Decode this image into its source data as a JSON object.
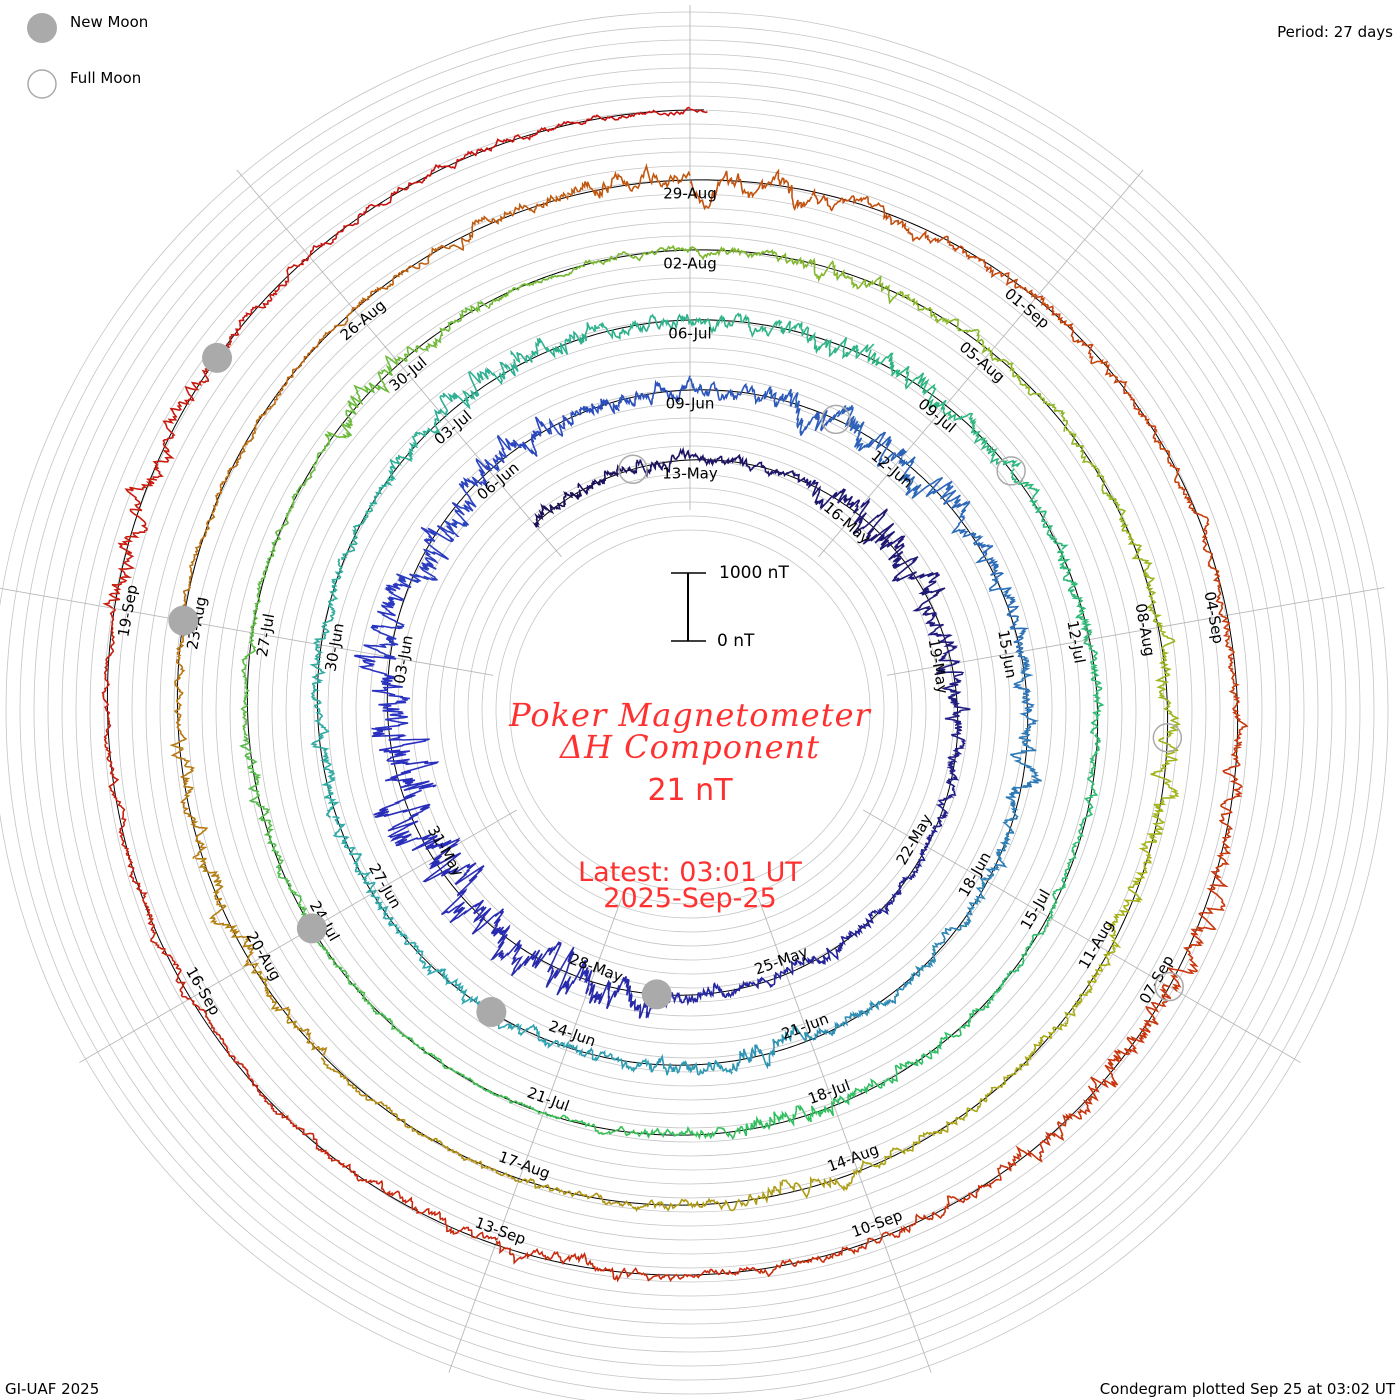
{
  "legend": {
    "new_moon": "New Moon",
    "full_moon": "Full Moon"
  },
  "period_label": "Period: 27 days",
  "footer_left": "GI-UAF 2025",
  "footer_right": "Condegram plotted Sep 25 at 03:02 UT",
  "scale": {
    "top": "1000 nT",
    "bottom": "0 nT"
  },
  "title_line1": "Poker Magnetometer",
  "title_line2": "ΔH Component",
  "current_value": "21 nT",
  "latest_line1": "Latest: 03:01 UT",
  "latest_line2": "2025-Sep-25",
  "colors": {
    "text_accent": "#ff3030",
    "grid": "#b0b0b0",
    "moon": "#aaaaaa",
    "turn_colors": [
      "#1a0f55",
      "#2a30c0",
      "#2fa6b0",
      "#2fc060",
      "#a6b418",
      "#c8400c",
      "#c81010"
    ]
  },
  "chart_data": {
    "type": "line",
    "layout": "spiral condegram",
    "period_days": 27,
    "start_date": "2025-05-10",
    "end_date": "2025-09-25",
    "reference_date": "2025-05-13",
    "scale_nT_per_bar": 1000,
    "date_labels": [
      "13-May",
      "16-May",
      "19-May",
      "22-May",
      "25-May",
      "28-May",
      "31-May",
      "03-Jun",
      "06-Jun",
      "09-Jun",
      "12-Jun",
      "15-Jun",
      "18-Jun",
      "21-Jun",
      "24-Jun",
      "27-Jun",
      "30-Jun",
      "03-Jul",
      "06-Jul",
      "09-Jul",
      "12-Jul",
      "15-Jul",
      "18-Jul",
      "21-Jul",
      "24-Jul",
      "27-Jul",
      "30-Jul",
      "02-Aug",
      "05-Aug",
      "08-Aug",
      "11-Aug",
      "14-Aug",
      "17-Aug",
      "20-Aug",
      "23-Aug",
      "26-Aug",
      "29-Aug",
      "01-Sep",
      "04-Sep",
      "07-Sep",
      "10-Sep",
      "13-Sep",
      "16-Sep",
      "19-Sep"
    ],
    "new_moons": [
      "2025-05-27",
      "2025-06-25",
      "2025-07-24",
      "2025-08-23",
      "2025-09-21"
    ],
    "full_moons": [
      "2025-05-12",
      "2025-06-11",
      "2025-07-10",
      "2025-08-09",
      "2025-09-07"
    ],
    "daily_activity_nT": [
      120,
      90,
      110,
      80,
      60,
      200,
      320,
      260,
      150,
      180,
      120,
      80,
      70,
      90,
      110,
      80,
      150,
      300,
      420,
      350,
      380,
      480,
      520,
      400,
      300,
      350,
      260,
      220,
      180,
      150,
      130,
      280,
      320,
      260,
      180,
      150,
      140,
      200,
      120,
      100,
      90,
      110,
      200,
      160,
      120,
      110,
      100,
      90,
      120,
      140,
      110,
      90,
      80,
      130,
      260,
      220,
      150,
      140,
      200,
      230,
      160,
      120,
      150,
      100,
      80,
      70,
      60,
      90,
      120,
      200,
      100,
      60,
      40,
      50,
      60,
      80,
      120,
      70,
      60,
      50,
      200,
      120,
      60,
      70,
      100,
      150,
      110,
      90,
      80,
      120,
      130,
      200,
      150,
      100,
      80,
      90,
      160,
      120,
      70,
      60,
      60,
      110,
      180,
      150,
      80,
      60,
      60,
      50,
      80,
      120,
      200,
      260,
      150,
      120,
      100,
      80,
      90,
      110,
      150,
      200,
      260,
      180,
      120,
      100,
      90,
      150,
      120,
      80,
      60,
      100,
      80,
      60,
      220,
      160,
      90,
      70,
      80,
      60,
      40
    ]
  }
}
